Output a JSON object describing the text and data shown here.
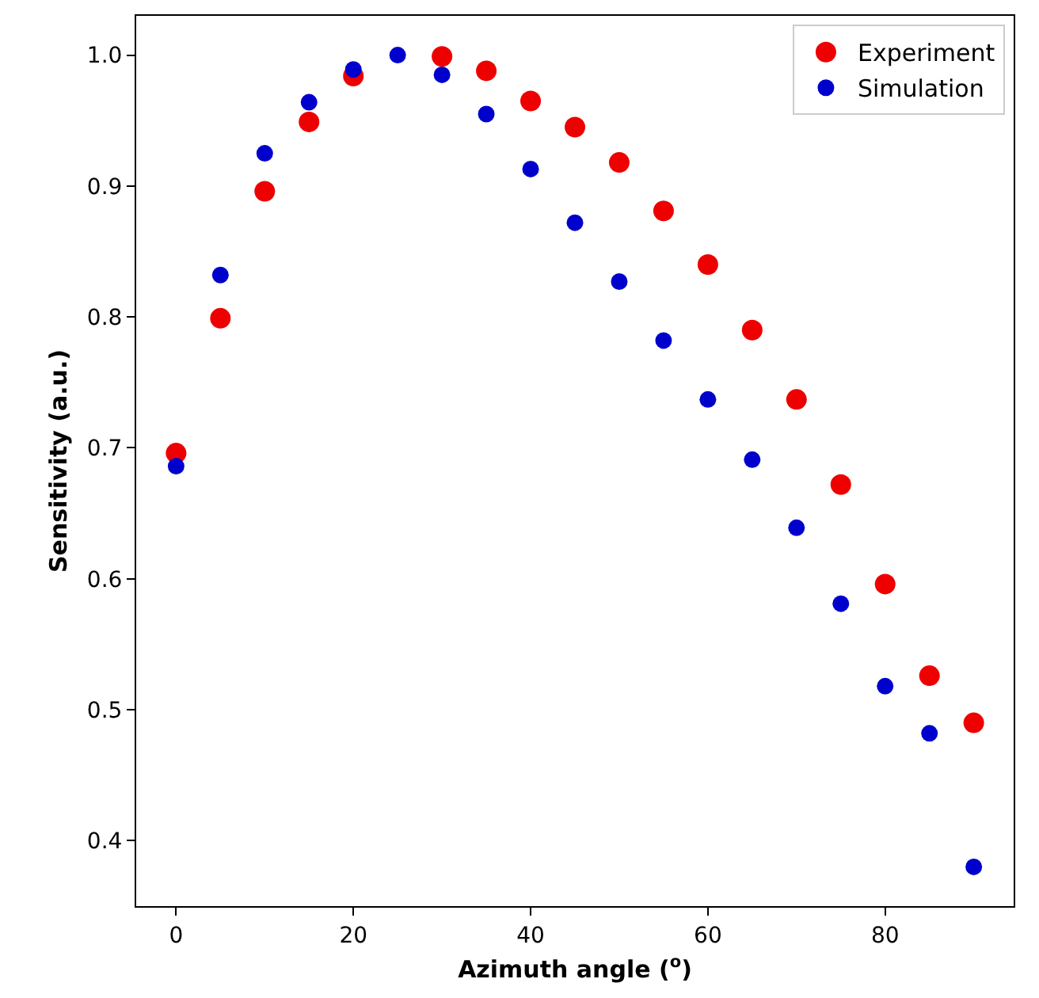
{
  "chart_data": {
    "type": "scatter",
    "xlabel": "Azimuth angle ($^{o}$)",
    "ylabel": "Sensitivity (a.u.)",
    "x": [
      0,
      5,
      10,
      15,
      20,
      25,
      30,
      35,
      40,
      45,
      50,
      55,
      60,
      65,
      70,
      75,
      80,
      85,
      90
    ],
    "series": [
      {
        "name": "Experiment",
        "color": "#ee0000",
        "values": [
          0.696,
          0.799,
          0.896,
          0.949,
          0.984,
          null,
          0.999,
          0.988,
          0.965,
          0.945,
          0.918,
          0.881,
          0.84,
          0.79,
          0.737,
          0.672,
          0.596,
          0.526,
          0.49
        ]
      },
      {
        "name": "Simulation",
        "color": "#0000cc",
        "values": [
          0.686,
          0.832,
          0.925,
          0.964,
          0.989,
          1.0,
          0.985,
          0.955,
          0.913,
          0.872,
          0.827,
          0.782,
          0.737,
          0.691,
          0.639,
          0.581,
          0.518,
          0.482,
          0.38
        ]
      }
    ],
    "xlim": [
      -4.5,
      94.5
    ],
    "xticks": [
      0,
      20,
      40,
      60,
      80
    ],
    "ylim": [
      0.35,
      1.03
    ],
    "yticks": [
      0.4,
      0.5,
      0.6,
      0.7,
      0.8,
      0.9,
      {
        "value": 1,
        "label": "1.0"
      }
    ],
    "grid": false,
    "legend": "top right",
    "marker": "circle"
  }
}
